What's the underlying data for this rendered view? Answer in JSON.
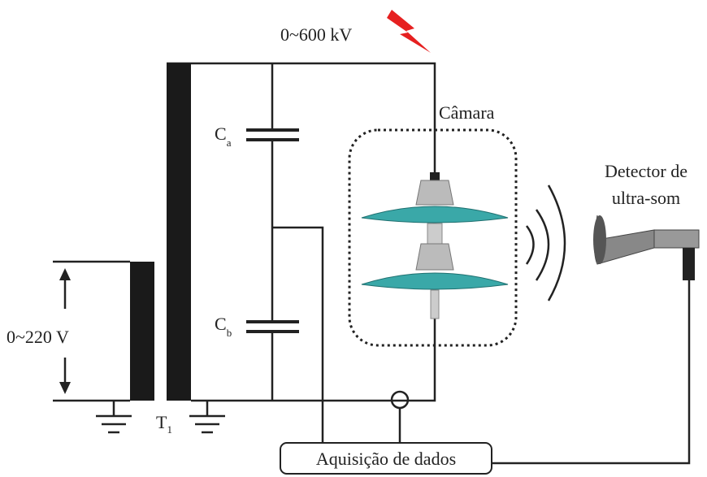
{
  "labels": {
    "source_voltage": "0~600 kV",
    "chamber": "Câmara",
    "detector_line1": "Detector de",
    "detector_line2": "ultra-som",
    "input_voltage": "0~220 V",
    "acquisition": "Aquisição de dados"
  },
  "components": {
    "capacitor_a": {
      "main": "C",
      "sub": "a"
    },
    "capacitor_b": {
      "main": "C",
      "sub": "b"
    },
    "transformer": {
      "main": "T",
      "sub": "1"
    }
  }
}
